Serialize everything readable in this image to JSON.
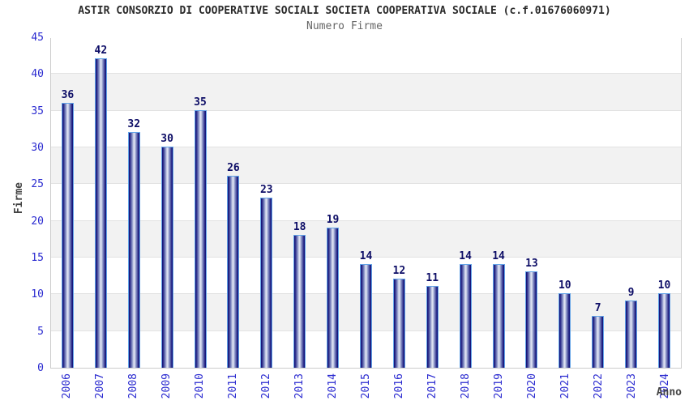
{
  "chart_data": {
    "type": "bar",
    "title": "ASTIR CONSORZIO DI COOPERATIVE SOCIALI SOCIETA COOPERATIVA SOCIALE (c.f.01676060971)",
    "subtitle": "Numero Firme",
    "xlabel": "Anno",
    "ylabel": "Firme",
    "categories": [
      "2006",
      "2007",
      "2008",
      "2009",
      "2010",
      "2011",
      "2012",
      "2013",
      "2014",
      "2015",
      "2016",
      "2017",
      "2018",
      "2019",
      "2020",
      "2021",
      "2022",
      "2023",
      "2024"
    ],
    "values": [
      36,
      42,
      32,
      30,
      35,
      26,
      23,
      18,
      19,
      14,
      12,
      11,
      14,
      14,
      13,
      10,
      7,
      9,
      10
    ],
    "ylim": [
      0,
      45
    ],
    "ytick_step": 5,
    "legend": "none",
    "grid": "horizontal-bands",
    "colors": {
      "title": "#2a2a2a",
      "subtitle": "#666666",
      "tick_label": "#2b2bd0",
      "value_label": "#0d0d66",
      "axis_title": "#444444",
      "bar_edge": "#16167c",
      "bar_mid": "#8a93c6",
      "bar_core": "#dde2f2",
      "bar_outline": "#63a4e8",
      "band_gray": "#f2f2f2",
      "gridline": "#e2e2e2",
      "plot_border": "#cccccc",
      "background": "#ffffff"
    }
  }
}
